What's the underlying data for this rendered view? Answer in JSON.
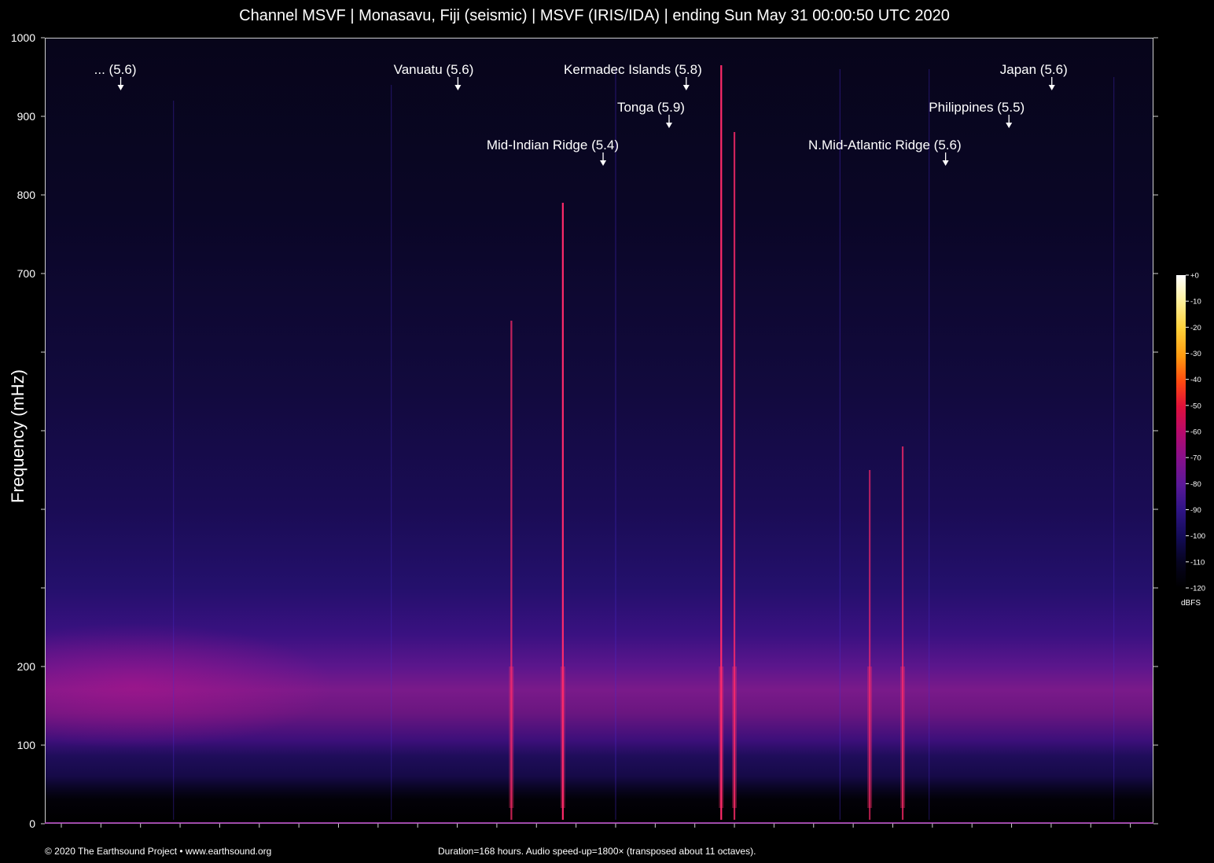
{
  "title": "Channel MSVF | Monasavu, Fiji (seismic) | MSVF (IRIS/IDA) | ending Sun May 31 00:00:50 UTC 2020",
  "footer": {
    "copyright": "© 2020 The Earthsound Project • www.earthsound.org",
    "note": "Duration=168 hours. Audio speed-up=1800× (transposed about 11 octaves)."
  },
  "colors": {
    "background": "#000000",
    "low_band": "#7a1a8a",
    "event_line": "#ff2a6a",
    "faint_line": "#4a2ad0",
    "annotation": "#ffffff"
  },
  "chart_data": {
    "type": "heatmap",
    "title": "Channel MSVF | Monasavu, Fiji (seismic) | MSVF (IRIS/IDA) | ending Sun May 31 00:00:50 UTC 2020",
    "xlabel": "",
    "ylabel": "Frequency (mHz)",
    "x_unit": "hours",
    "xlim": [
      0,
      168
    ],
    "ylim": [
      0,
      1000
    ],
    "y_ticks": [
      0,
      100,
      200,
      300,
      400,
      500,
      600,
      700,
      800,
      900,
      1000
    ],
    "y_tick_labels": [
      "0",
      "100",
      "200",
      "",
      "",
      "",
      "",
      "700",
      "800",
      "900",
      "1000"
    ],
    "x_tick_step_hours": 6,
    "grid": false,
    "events": [
      {
        "label": "... (5.6)",
        "hour": 11.5,
        "level": 1
      },
      {
        "label": "Vanuatu (5.6)",
        "hour": 62.6,
        "level": 1
      },
      {
        "label": "Kermadec Islands (5.8)",
        "hour": 97.2,
        "level": 1
      },
      {
        "label": "Japan (5.6)",
        "hour": 152.6,
        "level": 1
      },
      {
        "label": "Tonga (5.9)",
        "hour": 94.6,
        "level": 2
      },
      {
        "label": "Philippines (5.5)",
        "hour": 146.1,
        "level": 2
      },
      {
        "label": "Mid-Indian Ridge (5.4)",
        "hour": 84.6,
        "level": 3
      },
      {
        "label": "N.Mid-Atlantic Ridge (5.6)",
        "hour": 136.5,
        "level": 3
      }
    ],
    "signal_lines": [
      {
        "hour": 70.7,
        "top_mhz": 640,
        "intensity": 0.7
      },
      {
        "hour": 78.5,
        "top_mhz": 790,
        "intensity": 0.95
      },
      {
        "hour": 102.5,
        "top_mhz": 965,
        "intensity": 1.0
      },
      {
        "hour": 104.5,
        "top_mhz": 880,
        "intensity": 0.75
      },
      {
        "hour": 125.0,
        "top_mhz": 450,
        "intensity": 0.6
      },
      {
        "hour": 130.0,
        "top_mhz": 480,
        "intensity": 0.7
      },
      {
        "hour": 19.5,
        "top_mhz": 920,
        "intensity": 0.3
      },
      {
        "hour": 52.5,
        "top_mhz": 940,
        "intensity": 0.3
      },
      {
        "hour": 86.5,
        "top_mhz": 960,
        "intensity": 0.35
      },
      {
        "hour": 120.5,
        "top_mhz": 960,
        "intensity": 0.35
      },
      {
        "hour": 134.0,
        "top_mhz": 960,
        "intensity": 0.3
      },
      {
        "hour": 162.0,
        "top_mhz": 950,
        "intensity": 0.3
      }
    ],
    "colorbar": {
      "ticks": [
        "+0",
        "-10",
        "-20",
        "-30",
        "-40",
        "-50",
        "-60",
        "-70",
        "-80",
        "-90",
        "-100",
        "-110",
        "-120"
      ],
      "unit": "dBFS"
    }
  }
}
